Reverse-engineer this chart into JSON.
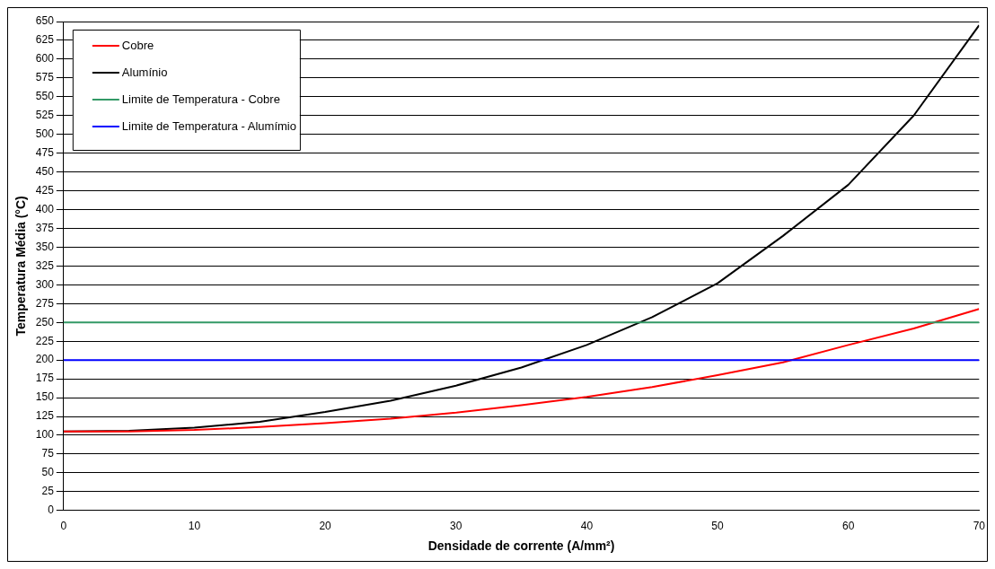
{
  "chart_data": {
    "type": "line",
    "xlabel": "Densidade de corrente (A/mm²)",
    "ylabel": "Temperatura Média (°C)",
    "x": [
      0,
      5,
      10,
      15,
      20,
      25,
      30,
      35,
      40,
      45,
      50,
      55,
      60,
      65,
      70
    ],
    "series": [
      {
        "name": "Cobre",
        "color": "#ff0000",
        "values": [
          105,
          105,
          107,
          111,
          116,
          122,
          130,
          140,
          151,
          164,
          180,
          197,
          220,
          242,
          268
        ]
      },
      {
        "name": "Alumínio",
        "color": "#000000",
        "values": [
          105,
          106,
          110,
          118,
          131,
          146,
          166,
          190,
          220,
          257,
          302,
          365,
          433,
          525,
          645
        ]
      }
    ],
    "ref_lines": [
      {
        "axis": "y",
        "value": 250,
        "label": "Limite de Temperatura - Cobre",
        "color": "#339966"
      },
      {
        "axis": "y",
        "value": 200,
        "label": "Limite de Temperatura - Alumímio",
        "color": "#0000ff"
      }
    ],
    "xlim": [
      0,
      70
    ],
    "xticks": [
      0,
      10,
      20,
      30,
      40,
      50,
      60,
      70
    ],
    "ylim": [
      0,
      650
    ],
    "yticks": [
      0,
      25,
      50,
      75,
      100,
      125,
      150,
      175,
      200,
      225,
      250,
      275,
      300,
      325,
      350,
      375,
      400,
      425,
      450,
      475,
      500,
      525,
      550,
      575,
      600,
      625,
      650
    ],
    "grid": "y",
    "legend": "top left",
    "marker": "none",
    "line_style": "solid"
  }
}
